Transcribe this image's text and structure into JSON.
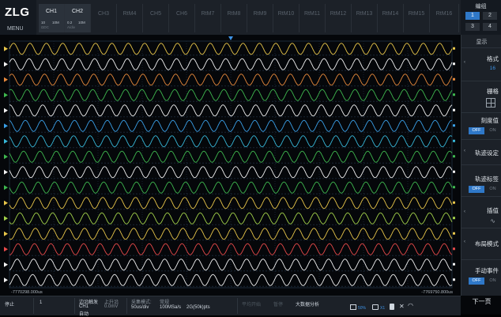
{
  "header": {
    "brand": "ZLG",
    "menu_label": "MENU",
    "channels": [
      {
        "label": "CH1",
        "active": true,
        "scale": "10",
        "unit": "10M",
        "coupling": "ΩDC"
      },
      {
        "label": "CH2",
        "active": true,
        "scale": "0.2",
        "unit": "10M",
        "coupling": "A/div"
      },
      {
        "label": "CH3",
        "active": false
      },
      {
        "label": "RtM4",
        "active": false
      },
      {
        "label": "CH5",
        "active": false
      },
      {
        "label": "CH6",
        "active": false
      },
      {
        "label": "RtM7",
        "active": false
      },
      {
        "label": "RtM8",
        "active": false
      },
      {
        "label": "RtM9",
        "active": false
      },
      {
        "label": "RtM10",
        "active": false
      },
      {
        "label": "RtM11",
        "active": false
      },
      {
        "label": "RtM12",
        "active": false
      },
      {
        "label": "RtM13",
        "active": false
      },
      {
        "label": "RtM14",
        "active": false
      },
      {
        "label": "RtM15",
        "active": false
      },
      {
        "label": "RtM16",
        "active": false
      }
    ],
    "group": {
      "label": "编组",
      "buttons": [
        "1",
        "2",
        "3",
        "4"
      ],
      "selected": "1"
    }
  },
  "scope": {
    "time_left": "-7770298.000us",
    "time_right": "-7769750.800us",
    "trace_colors": [
      "#e8c64a",
      "#f2f2f2",
      "#e88a3c",
      "#3fb84f",
      "#f2f2f2",
      "#3aa0e8",
      "#37b7d8",
      "#3fb84f",
      "#f2f2f2",
      "#3fb84f",
      "#e8c64a",
      "#a3d24a",
      "#e8c64a",
      "#e84a4a",
      "#f2f2f2",
      "#f2f2f2"
    ],
    "trace_count": 16
  },
  "panel": {
    "title": "显示",
    "format_label": "格式",
    "format_value": "16",
    "grid_label": "栅格",
    "scale_label": "刻度值",
    "scale_off": "OFF",
    "scale_on": "ON",
    "trace_setting_label": "轨迹设定",
    "trace_tag_label": "轨迹标签",
    "tag_off": "OFF",
    "tag_on": "ON",
    "interp_label": "插值",
    "layout_label": "布局模式",
    "manual_label": "手动事件",
    "manual_off": "OFF",
    "manual_on": "ON",
    "next_label": "下一页"
  },
  "bottom": {
    "run_state": "停止",
    "count": "1",
    "trigger_type": "边沿触发",
    "trigger_source": "CH1",
    "trigger_mode": "自动",
    "edge_label": "上升沿",
    "edge_level": "0.0mV",
    "timebase": "50us/div",
    "acq_label": "采集模式:",
    "acq_mode": "常规",
    "sample_rate": "100MSa/s",
    "points": "2G(50k)pts",
    "ghost1": "平均开始",
    "ghost2": "暂停",
    "bigdata": "大数据分析",
    "storage_pct": "50%",
    "multiplier": "X1"
  }
}
